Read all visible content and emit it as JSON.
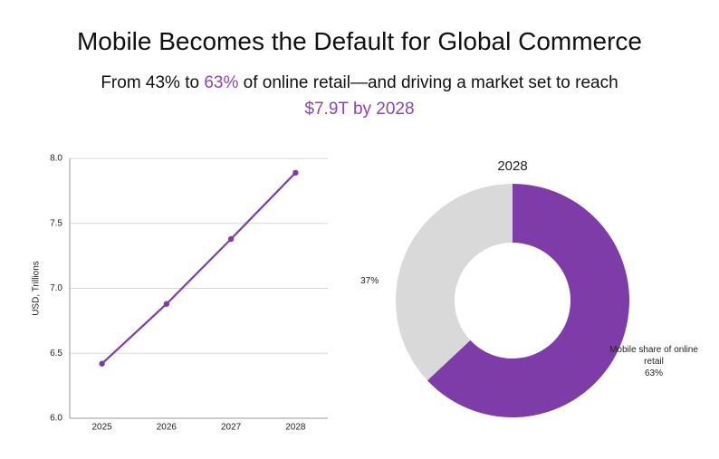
{
  "header": {
    "title": "Mobile Becomes the Default for Global Commerce",
    "subtitle": [
      "From 43% to ",
      "63%",
      " of online retail—and driving a market set to reach",
      "$7.9T by 2028"
    ]
  },
  "chart_data": [
    {
      "type": "line",
      "ylabel": "USD, Trillions",
      "categories": [
        "2025",
        "2026",
        "2027",
        "2028"
      ],
      "values": [
        6.42,
        6.88,
        7.38,
        7.89
      ],
      "color": "#7e3ca8",
      "ylim": [
        6.0,
        8.0
      ],
      "yticks": [
        {
          "value": 6,
          "label": "6.0"
        },
        {
          "value": 6.5,
          "label": "6.5"
        },
        {
          "value": 7,
          "label": "7.0"
        },
        {
          "value": 7.5,
          "label": "7.5"
        },
        {
          "value": 8,
          "label": "8.0"
        }
      ],
      "grid": true
    },
    {
      "type": "pie",
      "title": "2028",
      "donut": true,
      "categories": [
        "Mobile share of online retail",
        null
      ],
      "values": [
        63,
        37
      ],
      "value_labels": [
        "63%",
        "37%"
      ],
      "colors": [
        "#7e3ca8",
        "#d9d9d9"
      ]
    }
  ]
}
